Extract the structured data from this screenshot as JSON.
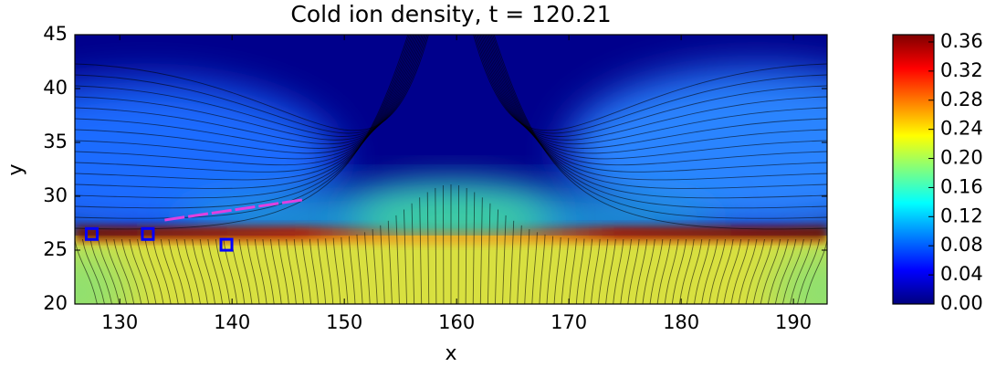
{
  "chart_data": {
    "type": "heatmap",
    "title": "Cold ion density, t = 120.21",
    "x_label": "x",
    "y_label": "y",
    "xlim": [
      126,
      193
    ],
    "ylim": [
      20,
      45
    ],
    "xticks": [
      130,
      140,
      150,
      160,
      170,
      180,
      190
    ],
    "yticks": [
      20,
      25,
      30,
      35,
      40,
      45
    ],
    "colormap": "jet",
    "colorbar": {
      "lim": [
        0,
        0.37
      ],
      "ticks": [
        {
          "value": 0,
          "label": "0.00"
        },
        0.04,
        0.08,
        0.12,
        0.16,
        {
          "value": 0.2,
          "label": "0.20"
        },
        0.24,
        0.28,
        0.32,
        0.36
      ]
    },
    "markers": {
      "x": [
        127.5,
        132.5,
        139.5
      ],
      "y": [
        26.5,
        26.5,
        25.5
      ],
      "color": "#0000ff"
    },
    "trajectory": {
      "x": [
        134,
        146.5
      ],
      "y": [
        27.8,
        29.7
      ],
      "color": "#e040e0"
    }
  }
}
